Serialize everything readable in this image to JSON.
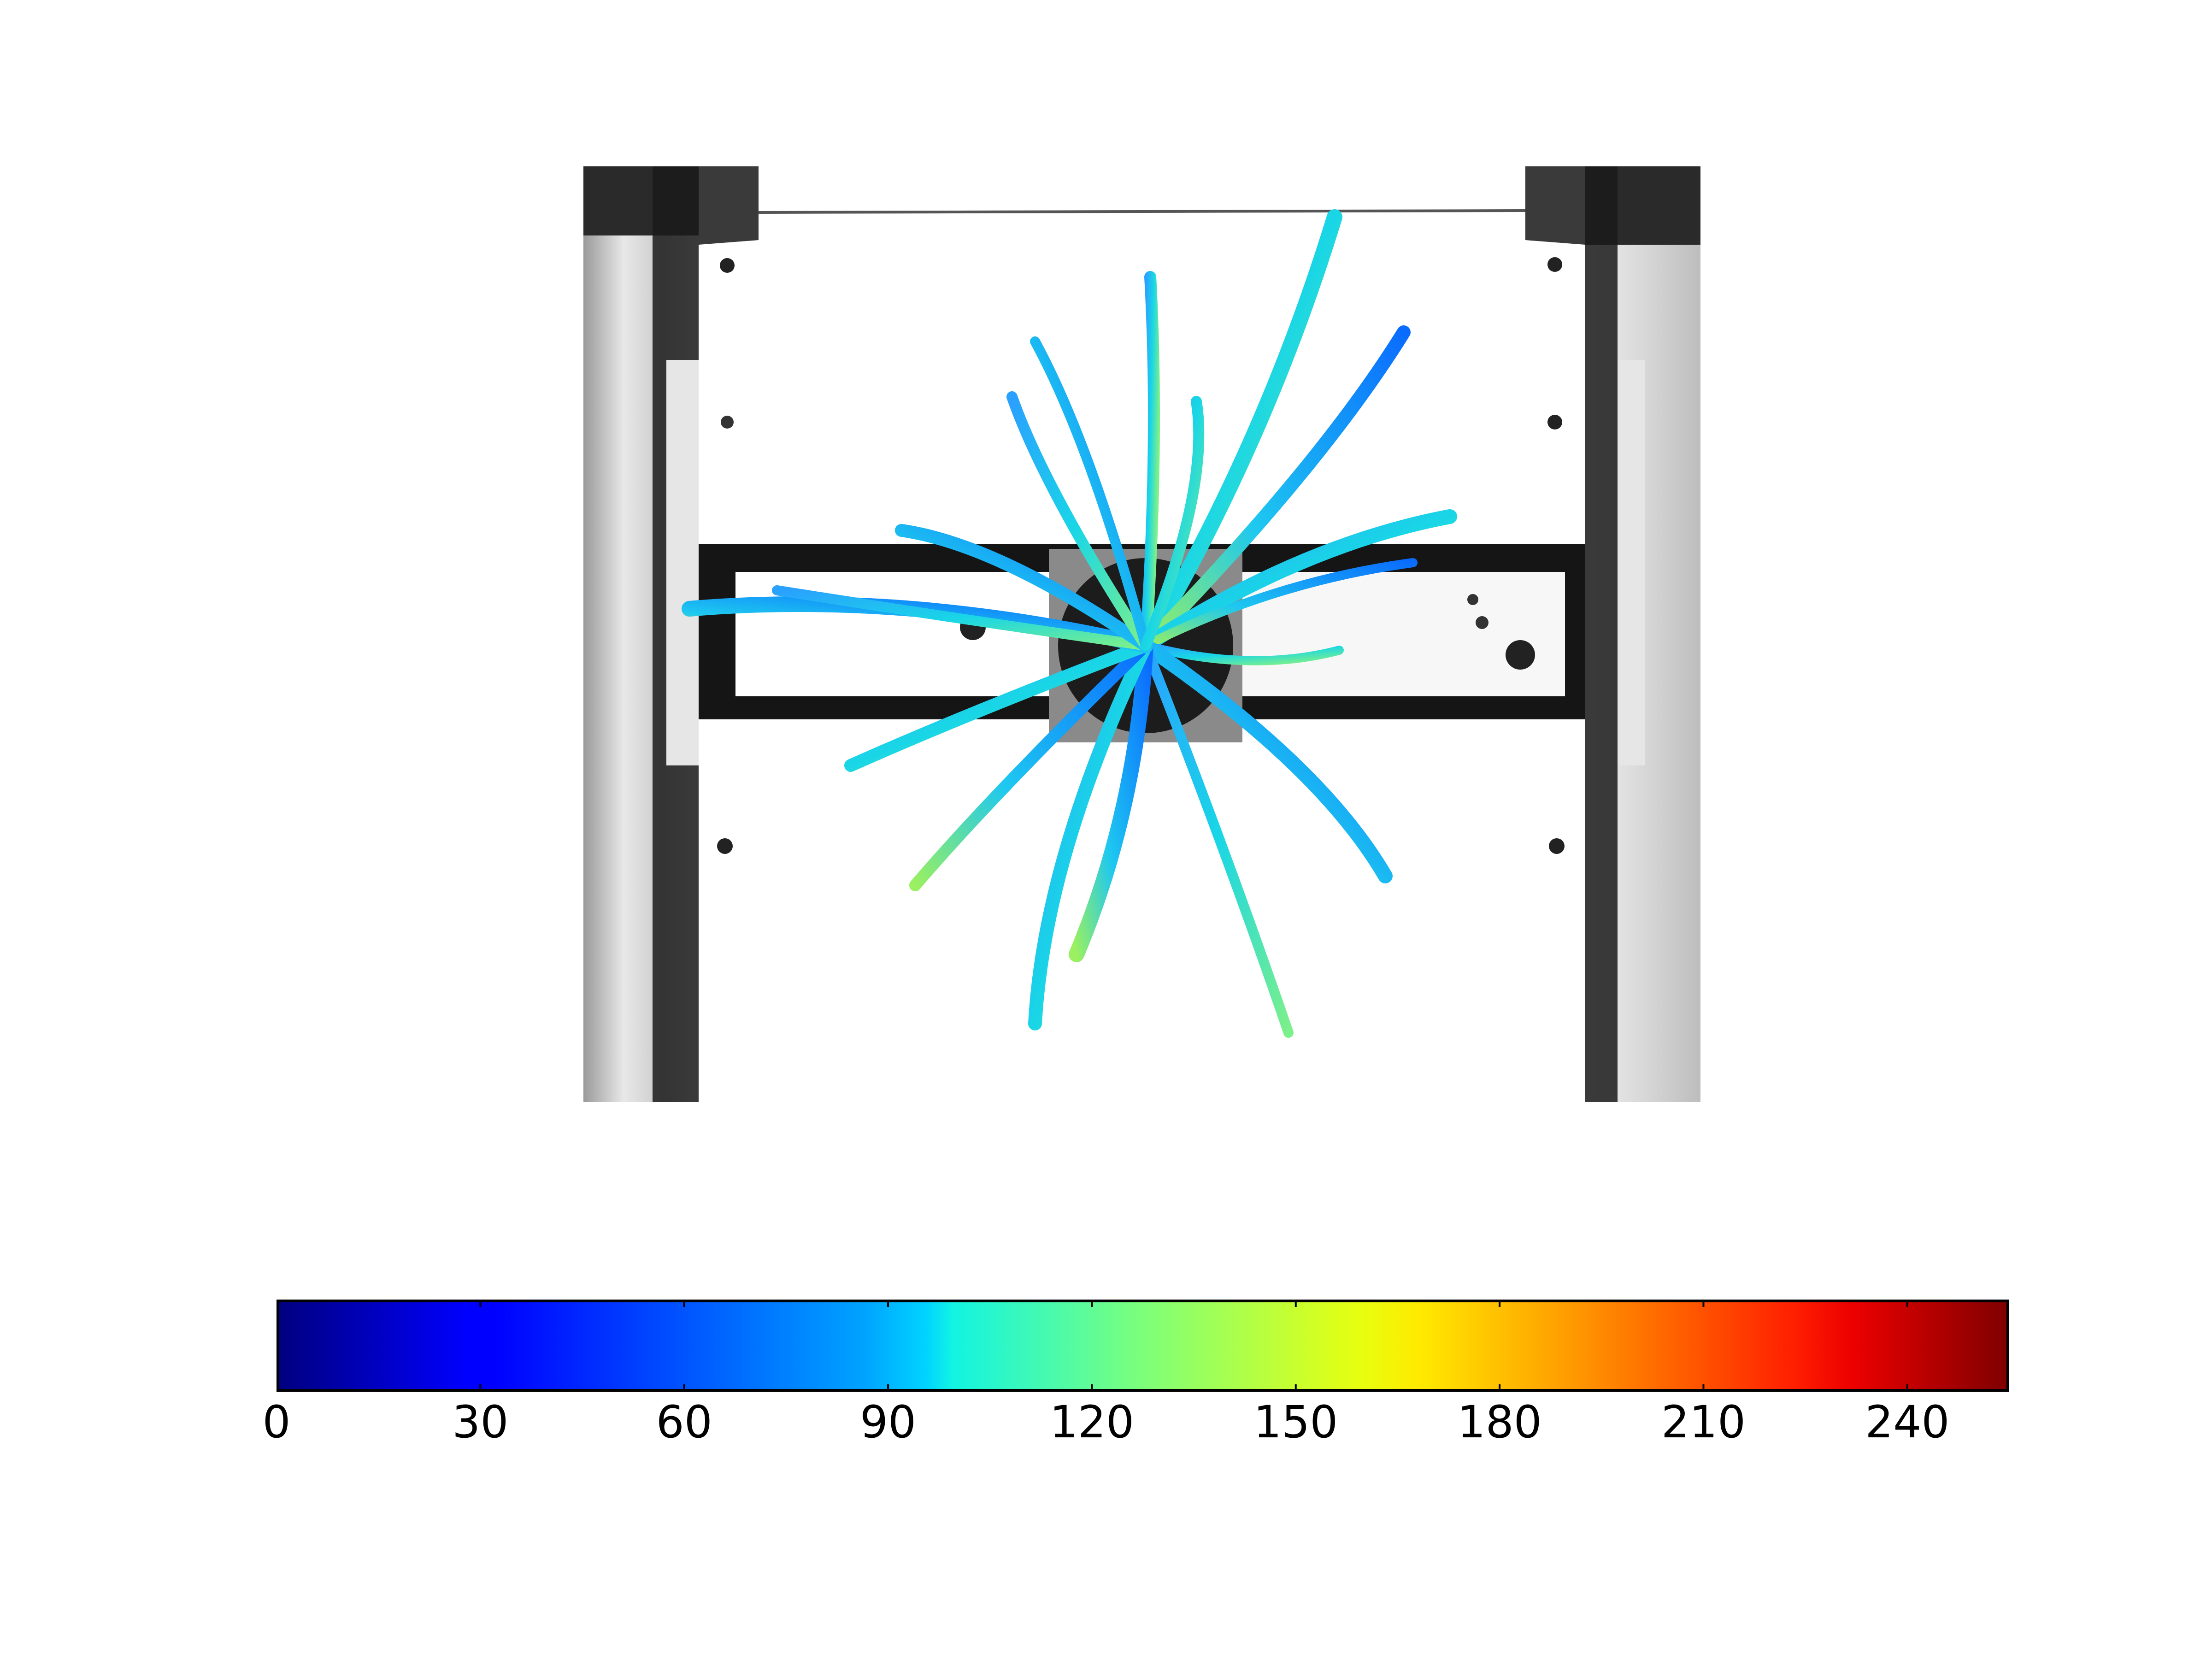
{
  "figure": {
    "description_free": true,
    "photo": {
      "scene": "top-down-plant-image",
      "background": "#ffffff",
      "frame_dark": "#111111"
    },
    "colorbar": {
      "colormap": "jet",
      "range": [
        0,
        255
      ],
      "orientation": "horizontal",
      "ticks": [
        0,
        30,
        60,
        90,
        120,
        150,
        180,
        210,
        240
      ],
      "tick_labels": [
        "0",
        "30",
        "60",
        "90",
        "120",
        "150",
        "180",
        "210",
        "240"
      ]
    }
  }
}
